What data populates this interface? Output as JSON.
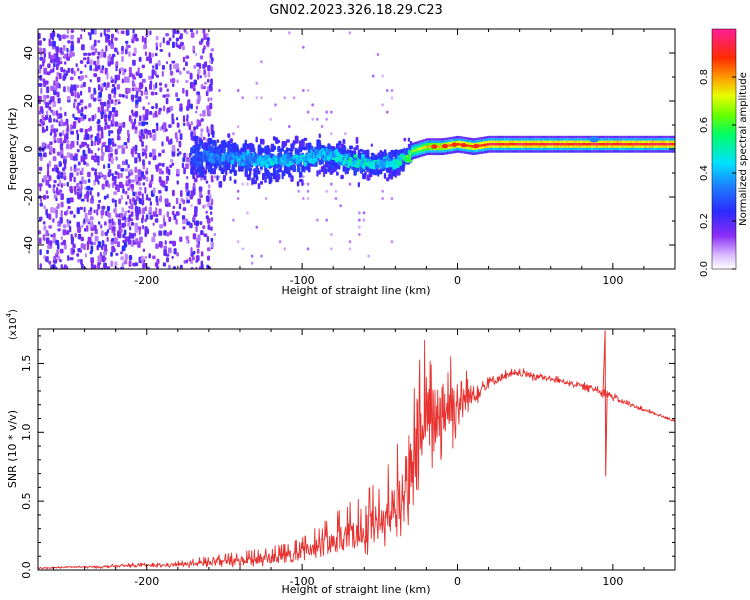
{
  "title": "GN02.2023.326.18.29.C23",
  "colors": {
    "red": "#e8322f",
    "violet": "#7a1cf0",
    "line": "#000000"
  },
  "chart_data": [
    {
      "type": "heatmap",
      "name": "spectrogram",
      "xlabel": "Height of straight line (km)",
      "ylabel": "Frequency (Hz)",
      "xlim": [
        -270,
        140
      ],
      "ylim": [
        -50,
        50
      ],
      "xticks": [
        -200,
        -100,
        0,
        100
      ],
      "xtick_labels": [
        "-200",
        "-100",
        "0",
        "100"
      ],
      "yticks": [
        -40,
        -20,
        0,
        20,
        40
      ],
      "ytick_labels": [
        "-40",
        "-20",
        "0",
        "20",
        "40"
      ],
      "colorbar": {
        "label": "Normalized spectral amplitude",
        "range": [
          0,
          1
        ],
        "ticks": [
          "0.0",
          "0.2",
          "0.4",
          "0.6",
          "0.8"
        ],
        "tick_values": [
          0,
          0.2,
          0.4,
          0.6,
          0.8
        ],
        "colormap": "violet-blue-cyan-green-yellow-red-magenta"
      },
      "ridge": {
        "x": [
          -160,
          -140,
          -120,
          -100,
          -90,
          -80,
          -70,
          -60,
          -50,
          -40,
          -30,
          -20,
          -10,
          0,
          10,
          20,
          40,
          60,
          80,
          100,
          140
        ],
        "freq": [
          -2,
          -3,
          -4,
          -3,
          -1,
          -2,
          -4,
          -5,
          -5,
          -4,
          -1,
          1,
          1,
          2,
          1,
          2,
          2,
          2,
          2,
          2,
          2
        ],
        "amplitude": [
          0.35,
          0.4,
          0.45,
          0.45,
          0.4,
          0.45,
          0.5,
          0.5,
          0.45,
          0.5,
          0.65,
          0.8,
          0.85,
          0.9,
          0.9,
          0.95,
          0.95,
          0.95,
          0.95,
          0.95,
          0.95
        ]
      },
      "grid": false
    },
    {
      "type": "line",
      "name": "snr",
      "xlabel": "Height of straight line (km)",
      "ylabel": "SNR (10 * v/v)",
      "multiplier_label": "(x10",
      "multiplier_exp": "4",
      "multiplier_close": ")",
      "xlim": [
        -270,
        140
      ],
      "ylim": [
        0,
        1.75
      ],
      "xticks": [
        -200,
        -100,
        0,
        100
      ],
      "xtick_labels": [
        "-200",
        "-100",
        "0",
        "100"
      ],
      "yticks": [
        0,
        0.5,
        1.0,
        1.5
      ],
      "ytick_labels": [
        "0.0",
        "0.5",
        "1.0",
        "1.5"
      ],
      "series": [
        {
          "color": "#e8322f",
          "x": [
            -270,
            -250,
            -230,
            -210,
            -190,
            -170,
            -150,
            -130,
            -110,
            -100,
            -90,
            -80,
            -70,
            -60,
            -50,
            -40,
            -30,
            -20,
            -10,
            0,
            10,
            20,
            30,
            40,
            50,
            60,
            70,
            80,
            90,
            95,
            100,
            110,
            120,
            130,
            140
          ],
          "y": [
            0.01,
            0.02,
            0.02,
            0.03,
            0.03,
            0.04,
            0.05,
            0.06,
            0.08,
            0.1,
            0.14,
            0.18,
            0.22,
            0.26,
            0.3,
            0.42,
            0.65,
            0.95,
            1.1,
            1.15,
            1.25,
            1.35,
            1.4,
            1.42,
            1.4,
            1.38,
            1.36,
            1.33,
            1.3,
            1.28,
            1.25,
            1.2,
            1.16,
            1.12,
            1.08
          ],
          "noise": [
            0.004,
            0.006,
            0.008,
            0.01,
            0.012,
            0.02,
            0.03,
            0.04,
            0.05,
            0.06,
            0.08,
            0.1,
            0.12,
            0.14,
            0.16,
            0.2,
            0.28,
            0.35,
            0.3,
            0.25,
            0.08,
            0.05,
            0.03,
            0.02,
            0.03,
            0.02,
            0.02,
            0.02,
            0.03,
            0.03,
            0.02,
            0.02,
            0.01,
            0.01,
            0.01
          ]
        }
      ],
      "spike": {
        "x": 95,
        "y_max": 1.74,
        "y_min": 0.68
      },
      "grid": false
    }
  ]
}
